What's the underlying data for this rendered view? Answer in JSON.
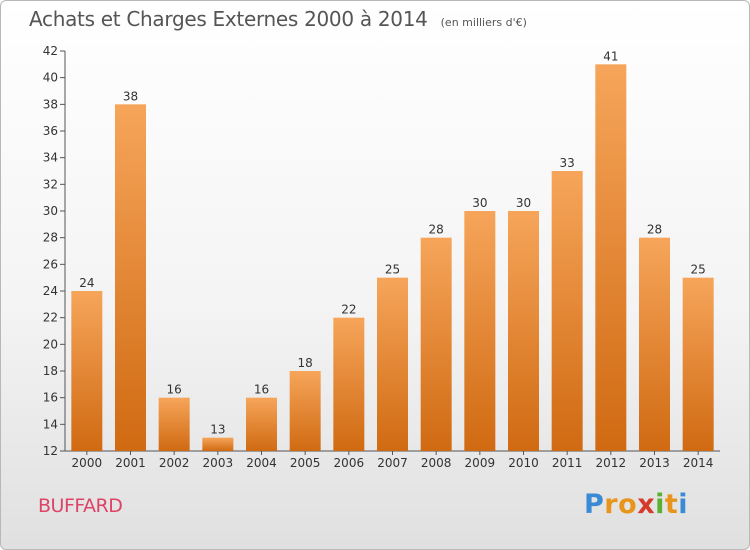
{
  "chart_data": {
    "type": "bar",
    "title": "Achats et Charges Externes 2000 à 2014",
    "unit_label": "(en milliers d'€)",
    "categories": [
      "2000",
      "2001",
      "2002",
      "2003",
      "2004",
      "2005",
      "2006",
      "2007",
      "2008",
      "2009",
      "2010",
      "2011",
      "2012",
      "2013",
      "2014"
    ],
    "values": [
      24,
      38,
      16,
      13,
      16,
      18,
      22,
      25,
      28,
      30,
      30,
      33,
      41,
      28,
      25
    ],
    "ylim": [
      12,
      42
    ],
    "yticks": [
      12,
      14,
      16,
      18,
      20,
      22,
      24,
      26,
      28,
      30,
      32,
      34,
      36,
      38,
      40,
      42
    ],
    "grid": false,
    "bar_color": "#f0923c"
  },
  "footer": {
    "commune": "BUFFARD",
    "brand": {
      "letters": [
        "P",
        "r",
        "o",
        "x",
        "i",
        "t",
        "i"
      ],
      "colors": [
        "#3a8ad6",
        "#e8951e",
        "#e8951e",
        "#d63a2a",
        "#5ab031",
        "#e8951e",
        "#3a8ad6"
      ]
    }
  }
}
